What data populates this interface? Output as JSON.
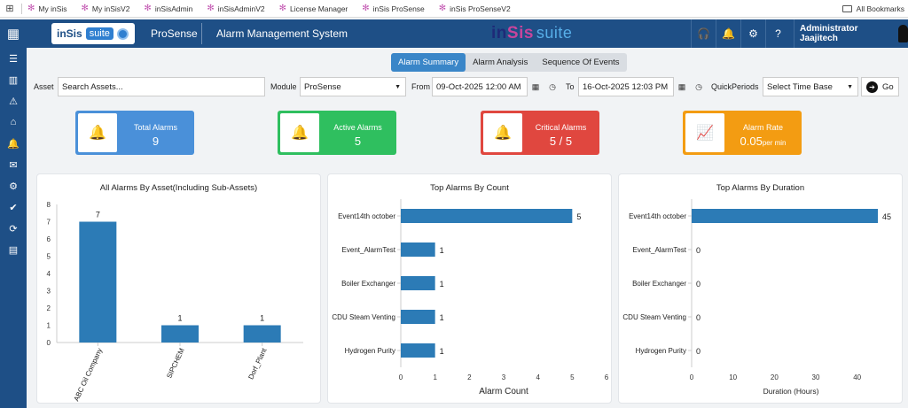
{
  "bookmarks": {
    "items": [
      "My inSis",
      "My inSisV2",
      "inSisAdmin",
      "inSisAdminV2",
      "License Manager",
      "inSis ProSense",
      "inSis ProSenseV2"
    ],
    "all_label": "All Bookmarks"
  },
  "header": {
    "logo_text": "inSis",
    "logo_suite": "suite",
    "product": "ProSense",
    "system": "Alarm Management System",
    "center_logo_a": "in",
    "center_logo_b": "Sis",
    "center_logo_c": "suite",
    "user": "Administrator Jaajitech"
  },
  "tabs": [
    "Alarm Summary",
    "Alarm Analysis",
    "Sequence Of Events"
  ],
  "active_tab": "Alarm Summary",
  "filters": {
    "asset_label": "Asset",
    "asset_placeholder": "Search Assets...",
    "module_label": "Module",
    "module_value": "ProSense",
    "from_label": "From",
    "from_value": "09-Oct-2025 12:00 AM",
    "to_label": "To",
    "to_value": "16-Oct-2025 12:03 PM",
    "quick_label": "QuickPeriods",
    "quick_value": "Select Time Base",
    "go_label": "Go"
  },
  "cards": [
    {
      "title": "Total Alarms",
      "value": "9",
      "unit": "",
      "color": "#4a90d9",
      "icon": "bell-icon"
    },
    {
      "title": "Active Alarms",
      "value": "5",
      "unit": "",
      "color": "#2fbf5f",
      "icon": "bell-icon"
    },
    {
      "title": "Critical Alarms",
      "value": "5 / 5",
      "unit": "",
      "color": "#e0473f",
      "icon": "bell-icon"
    },
    {
      "title": "Alarm Rate",
      "value": "0.05",
      "unit": "per min",
      "color": "#f39c12",
      "icon": "chart-line-icon"
    }
  ],
  "chart_data": [
    {
      "type": "bar",
      "title": "All Alarms By Asset(Including Sub-Assets)",
      "categories": [
        "ABC Oil Company",
        "SIPCHEM",
        "Dorf_Plant"
      ],
      "values": [
        7,
        1,
        1
      ],
      "ylim": [
        0,
        8
      ],
      "yticks": [
        "0",
        "1",
        "2",
        "3",
        "4",
        "5",
        "6",
        "7",
        "8"
      ],
      "xlabel": "",
      "ylabel": "",
      "grid": false,
      "color": "#2c7bb6"
    },
    {
      "type": "bar",
      "orientation": "horizontal",
      "title": "Top Alarms By Count",
      "categories": [
        "Event14th october",
        "Event_AlarmTest",
        "Boiler Exchanger",
        "CDU Steam Venting",
        "Hydrogen Purity"
      ],
      "values": [
        5,
        1,
        1,
        1,
        1
      ],
      "xlim": [
        0,
        6
      ],
      "xticks": [
        "0",
        "1",
        "2",
        "3",
        "4",
        "5",
        "6"
      ],
      "xlabel": "Alarm Count",
      "ylabel": "",
      "grid": false,
      "color": "#2c7bb6"
    },
    {
      "type": "bar",
      "orientation": "horizontal",
      "title": "Top Alarms By Duration",
      "categories": [
        "Event14th october",
        "Event_AlarmTest",
        "Boiler Exchanger",
        "CDU Steam Venting",
        "Hydrogen Purity"
      ],
      "values": [
        45,
        0,
        0,
        0,
        0
      ],
      "xlim": [
        0,
        48
      ],
      "xticks": [
        "0",
        "10",
        "20",
        "30",
        "40"
      ],
      "xtick_values": [
        0,
        10,
        20,
        30,
        40
      ],
      "xlabel": "Duration (Hours)",
      "ylabel": "",
      "grid": false,
      "color": "#2c7bb6"
    }
  ]
}
